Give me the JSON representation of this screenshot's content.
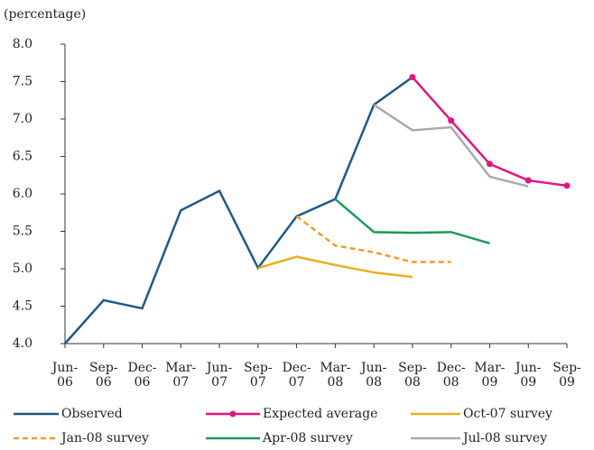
{
  "chart_data": {
    "type": "line",
    "y_label": "(percentage)",
    "categories": [
      "Jun-06",
      "Sep-06",
      "Dec-06",
      "Mar-07",
      "Jun-07",
      "Sep-07",
      "Dec-07",
      "Mar-08",
      "Jun-08",
      "Sep-08",
      "Dec-08",
      "Mar-09",
      "Jun-09",
      "Sep-09"
    ],
    "ylim": [
      4.0,
      8.0
    ],
    "yticks": [
      {
        "value": 4,
        "label": "4.0"
      },
      {
        "value": 4.5,
        "label": "4.5"
      },
      {
        "value": 5,
        "label": "5.0"
      },
      {
        "value": 5.5,
        "label": "5.5"
      },
      {
        "value": 6,
        "label": "6.0"
      },
      {
        "value": 6.5,
        "label": "6.5"
      },
      {
        "value": 7,
        "label": "7.0"
      },
      {
        "value": 7.5,
        "label": "7.5"
      },
      {
        "value": 8,
        "label": "8.0"
      }
    ],
    "grid": false,
    "series": [
      {
        "name": "Observed",
        "color": "#1f5a86",
        "values": [
          4.0,
          4.58,
          4.47,
          5.78,
          6.04,
          5.01,
          5.7,
          5.93,
          7.19,
          7.56,
          null,
          null,
          null,
          null
        ]
      },
      {
        "name": "Expected average",
        "color": "#e0177f",
        "marker": true,
        "values": [
          null,
          null,
          null,
          null,
          null,
          null,
          null,
          null,
          null,
          7.56,
          6.98,
          6.4,
          6.18,
          6.11
        ]
      },
      {
        "name": "Oct-07 survey",
        "color": "#e8b020",
        "values": [
          null,
          null,
          null,
          null,
          null,
          5.01,
          5.16,
          5.05,
          4.95,
          4.89,
          null,
          null,
          null,
          null
        ]
      },
      {
        "name": "Jan-08 survey",
        "color": "#f39a2b",
        "dashed": true,
        "values": [
          null,
          null,
          null,
          null,
          null,
          null,
          5.7,
          5.31,
          5.22,
          5.09,
          5.09,
          null,
          null,
          null
        ]
      },
      {
        "name": "Apr-08 survey",
        "color": "#1a9a5a",
        "values": [
          null,
          null,
          null,
          null,
          null,
          null,
          null,
          5.93,
          5.49,
          5.48,
          5.49,
          5.34,
          null,
          null
        ]
      },
      {
        "name": "Jul-08 survey",
        "color": "#aaaaaa",
        "values": [
          null,
          null,
          null,
          null,
          null,
          null,
          null,
          null,
          7.19,
          6.85,
          6.89,
          6.23,
          6.1,
          null
        ]
      }
    ]
  }
}
